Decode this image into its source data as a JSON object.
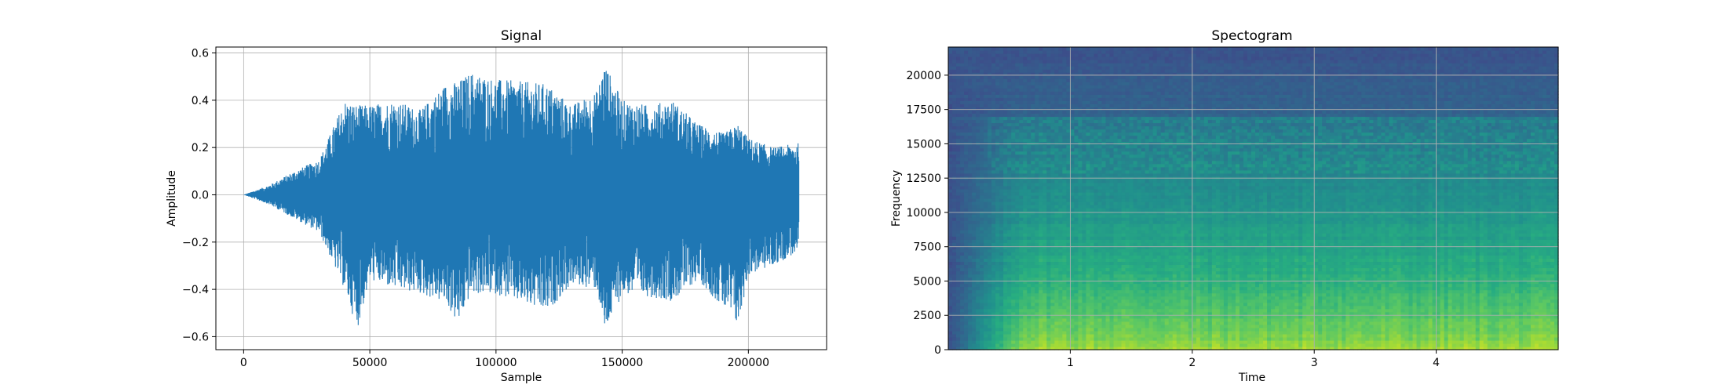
{
  "chart_data": [
    {
      "type": "line",
      "title": "Signal",
      "xlabel": "Sample",
      "ylabel": "Amplitude",
      "xlim": [
        -11000,
        231000
      ],
      "ylim": [
        -0.655,
        0.625
      ],
      "xticks": [
        0,
        50000,
        100000,
        150000,
        200000
      ],
      "xtick_labels": [
        "0",
        "50000",
        "100000",
        "150000",
        "200000"
      ],
      "yticks": [
        -0.6,
        -0.4,
        -0.2,
        0.0,
        0.2,
        0.4,
        0.6
      ],
      "ytick_labels": [
        "−0.6",
        "−0.4",
        "−0.2",
        "0.0",
        "0.2",
        "0.4",
        "0.6"
      ],
      "grid": true,
      "color": "#1f77b4",
      "series": [
        {
          "x": [
            0,
            10000,
            20000,
            30000,
            40000,
            45000,
            50000,
            60000,
            70000,
            80000,
            85000,
            90000,
            100000,
            110000,
            120000,
            130000,
            140000,
            143000,
            150000,
            160000,
            170000,
            180000,
            190000,
            196000,
            200000,
            210000,
            220000
          ],
          "envelope_upper": [
            0.0,
            0.04,
            0.1,
            0.15,
            0.4,
            0.38,
            0.38,
            0.4,
            0.36,
            0.47,
            0.48,
            0.52,
            0.49,
            0.48,
            0.47,
            0.38,
            0.44,
            0.56,
            0.4,
            0.38,
            0.4,
            0.3,
            0.26,
            0.3,
            0.24,
            0.2,
            0.22
          ],
          "envelope_lower": [
            0.0,
            -0.04,
            -0.1,
            -0.16,
            -0.4,
            -0.57,
            -0.36,
            -0.4,
            -0.42,
            -0.46,
            -0.55,
            -0.42,
            -0.42,
            -0.46,
            -0.5,
            -0.38,
            -0.4,
            -0.59,
            -0.42,
            -0.43,
            -0.45,
            -0.36,
            -0.48,
            -0.56,
            -0.34,
            -0.3,
            -0.24
          ]
        }
      ]
    },
    {
      "type": "heatmap",
      "title": "Spectogram",
      "xlabel": "Time",
      "ylabel": "Frequency",
      "xlim": [
        0,
        5.0
      ],
      "ylim": [
        0,
        22050
      ],
      "xticks": [
        1,
        2,
        3,
        4
      ],
      "xtick_labels": [
        "1",
        "2",
        "3",
        "4"
      ],
      "yticks": [
        0,
        2500,
        5000,
        7500,
        10000,
        12500,
        15000,
        17500,
        20000
      ],
      "ytick_labels": [
        "0",
        "2500",
        "5000",
        "7500",
        "10000",
        "12500",
        "15000",
        "17500",
        "20000"
      ],
      "grid": true,
      "colormap": "viridis"
    }
  ]
}
